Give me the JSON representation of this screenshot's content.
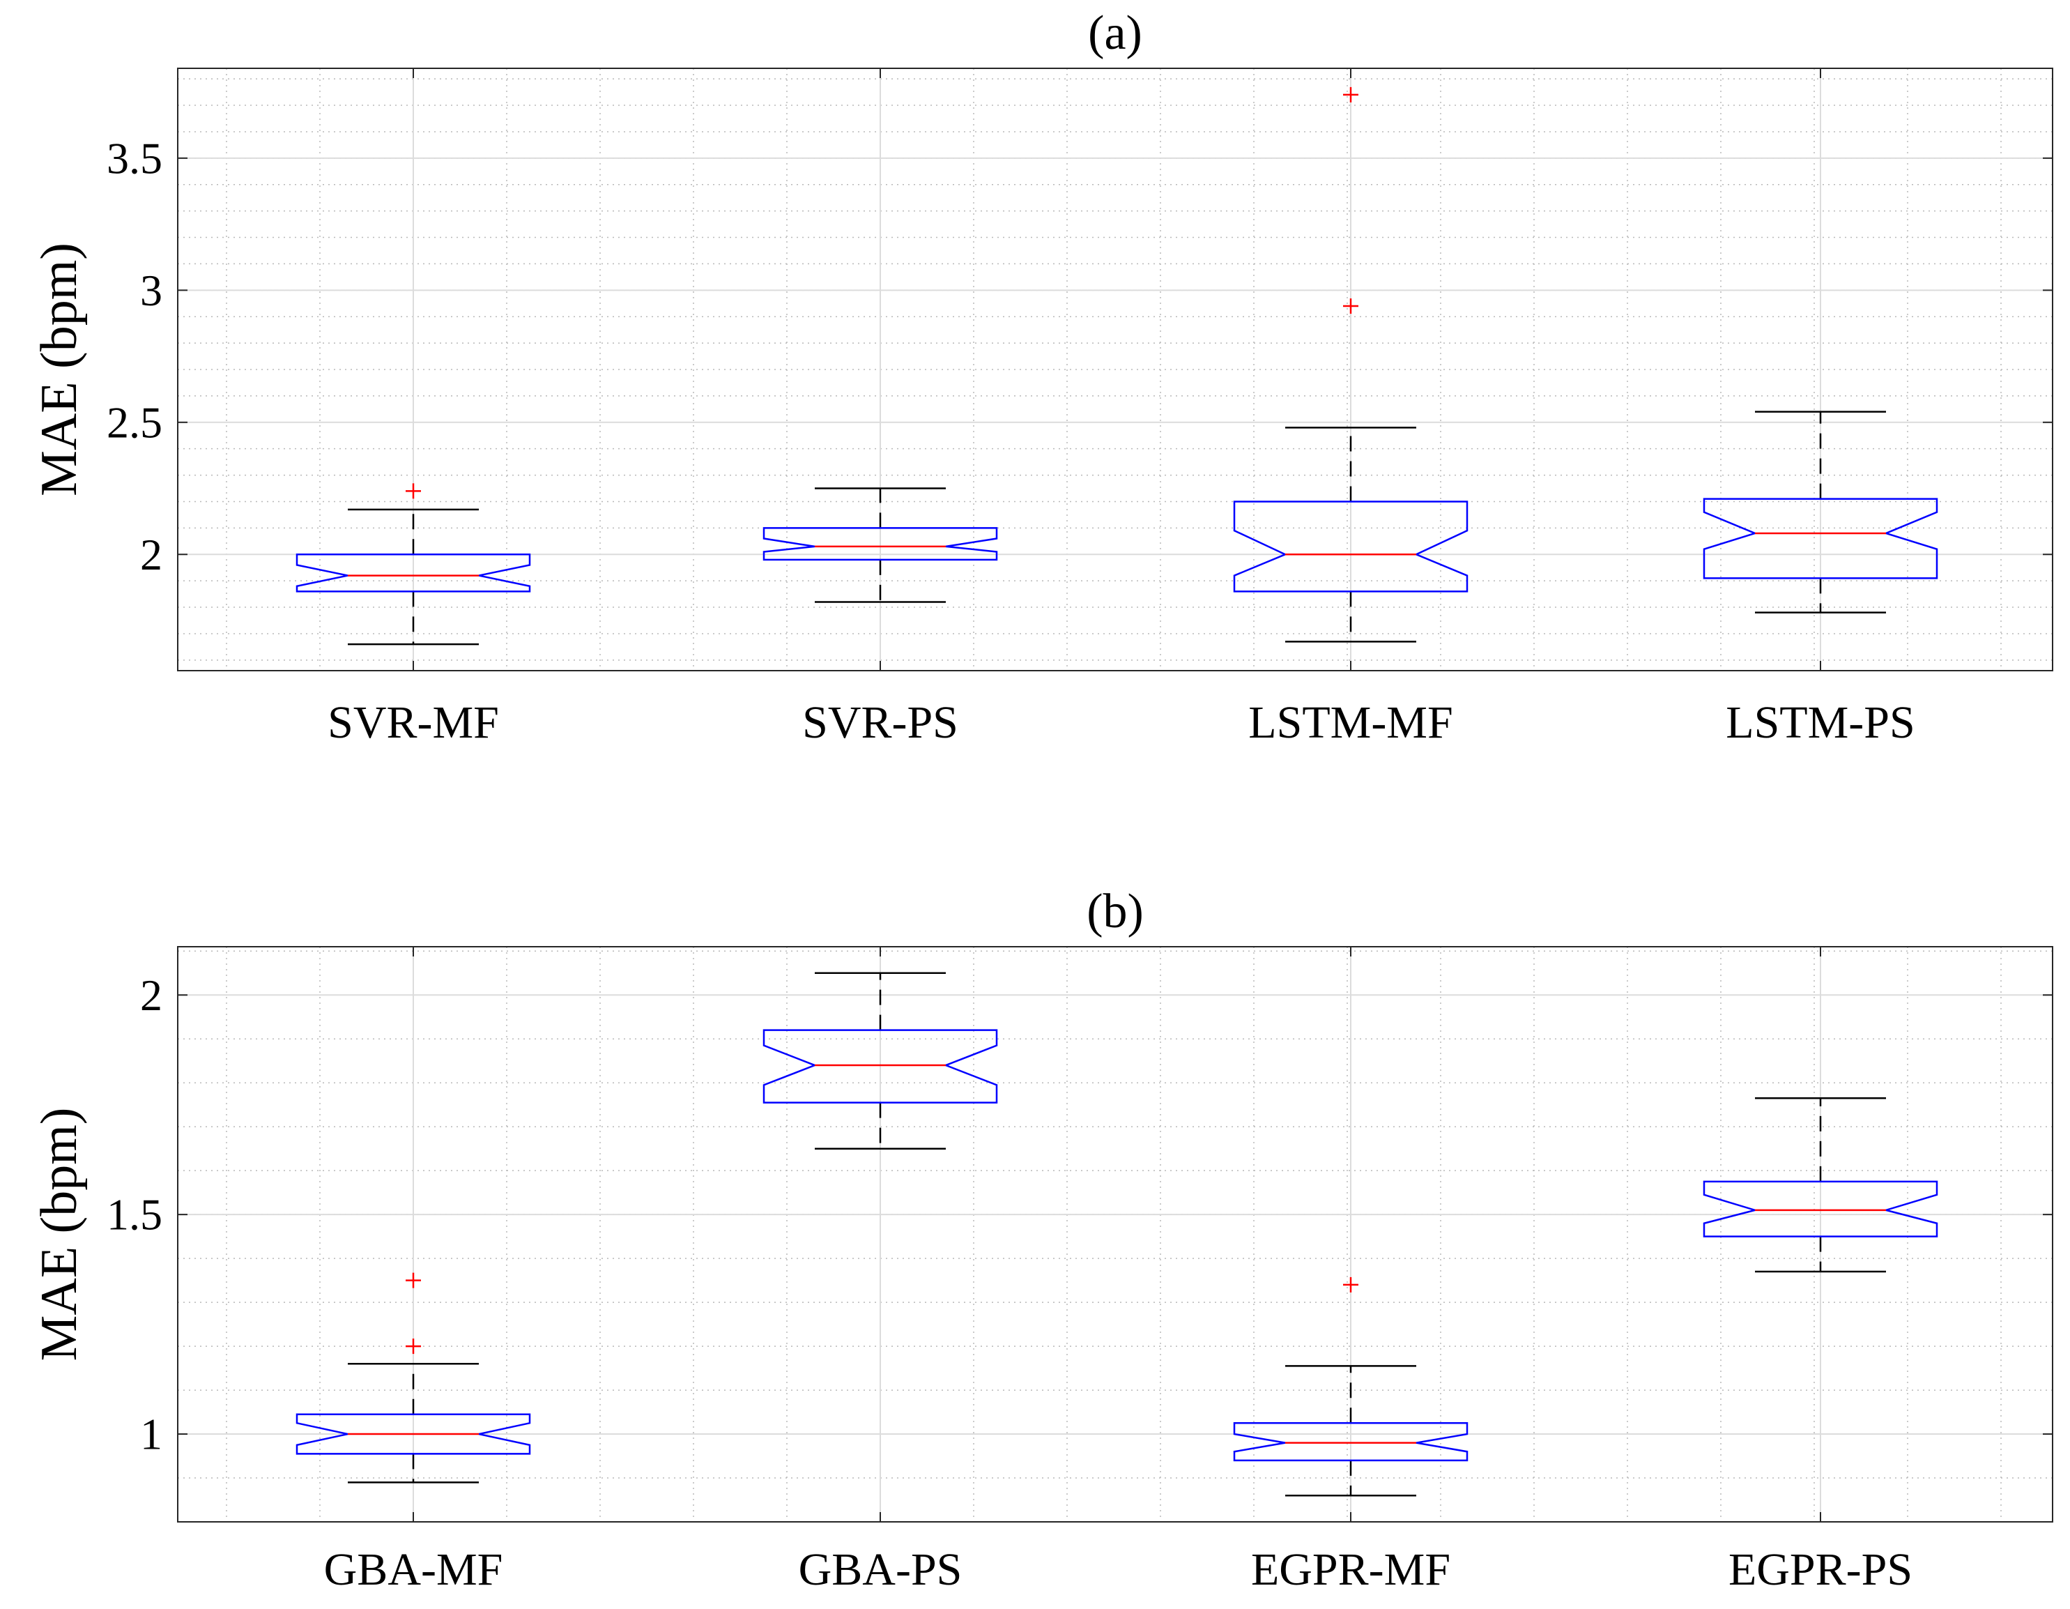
{
  "colors": {
    "box": "#0000ff",
    "median": "#ff0000",
    "outlier": "#ff0000",
    "whisker": "#000000",
    "major_grid": "#dcdcdc",
    "minor_grid": "#b8b8b8",
    "axes": "#262626"
  },
  "chart_data": [
    {
      "type": "boxplot",
      "title": "(a)",
      "xlabel": "",
      "ylabel": "MAE (bpm)",
      "ylim": [
        1.56,
        3.84
      ],
      "yticks": [
        2,
        2.5,
        3,
        3.5
      ],
      "ytick_labels": [
        "2",
        "2.5",
        "3",
        "3.5"
      ],
      "minor_ytick_step": 0.1,
      "grid": "major and minor",
      "notched": true,
      "categories": [
        "SVR-MF",
        "SVR-PS",
        "LSTM-MF",
        "LSTM-PS"
      ],
      "boxes": [
        {
          "name": "SVR-MF",
          "whisker_low": 1.66,
          "q1": 1.86,
          "notch_low": 1.88,
          "median": 1.92,
          "notch_high": 1.96,
          "q3": 2.0,
          "whisker_high": 2.17,
          "outliers": [
            2.24
          ]
        },
        {
          "name": "SVR-PS",
          "whisker_low": 1.82,
          "q1": 1.98,
          "notch_low": 2.01,
          "median": 2.03,
          "notch_high": 2.06,
          "q3": 2.1,
          "whisker_high": 2.25,
          "outliers": []
        },
        {
          "name": "LSTM-MF",
          "whisker_low": 1.67,
          "q1": 1.86,
          "notch_low": 1.92,
          "median": 2.0,
          "notch_high": 2.09,
          "q3": 2.2,
          "whisker_high": 2.48,
          "outliers": [
            2.94,
            3.74
          ]
        },
        {
          "name": "LSTM-PS",
          "whisker_low": 1.78,
          "q1": 1.91,
          "notch_low": 2.02,
          "median": 2.08,
          "notch_high": 2.16,
          "q3": 2.21,
          "whisker_high": 2.54,
          "outliers": []
        }
      ]
    },
    {
      "type": "boxplot",
      "title": "(b)",
      "xlabel": "",
      "ylabel": "MAE (bpm)",
      "ylim": [
        0.8,
        2.11
      ],
      "yticks": [
        1,
        1.5,
        2
      ],
      "ytick_labels": [
        "1",
        "1.5",
        "2"
      ],
      "minor_ytick_step": 0.1,
      "grid": "major and minor",
      "notched": true,
      "categories": [
        "GBA-MF",
        "GBA-PS",
        "EGPR-MF",
        "EGPR-PS"
      ],
      "boxes": [
        {
          "name": "GBA-MF",
          "whisker_low": 0.89,
          "q1": 0.955,
          "notch_low": 0.975,
          "median": 1.0,
          "notch_high": 1.025,
          "q3": 1.045,
          "whisker_high": 1.16,
          "outliers": [
            1.2,
            1.35
          ]
        },
        {
          "name": "GBA-PS",
          "whisker_low": 1.65,
          "q1": 1.755,
          "notch_low": 1.795,
          "median": 1.84,
          "notch_high": 1.885,
          "q3": 1.92,
          "whisker_high": 2.05,
          "outliers": []
        },
        {
          "name": "EGPR-MF",
          "whisker_low": 0.86,
          "q1": 0.94,
          "notch_low": 0.96,
          "median": 0.98,
          "notch_high": 1.0,
          "q3": 1.025,
          "whisker_high": 1.155,
          "outliers": [
            1.34
          ]
        },
        {
          "name": "EGPR-PS",
          "whisker_low": 1.37,
          "q1": 1.45,
          "notch_low": 1.48,
          "median": 1.51,
          "notch_high": 1.545,
          "q3": 1.575,
          "whisker_high": 1.765,
          "outliers": []
        }
      ]
    }
  ]
}
